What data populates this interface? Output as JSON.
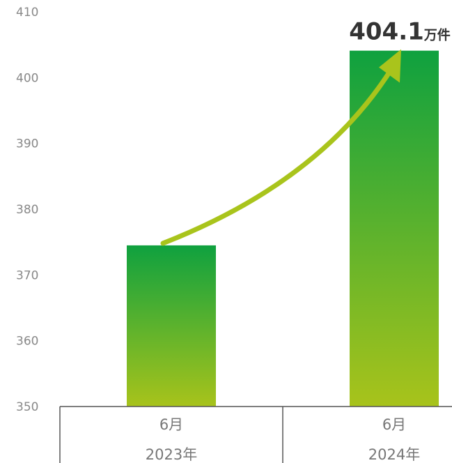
{
  "chart_data": {
    "type": "bar",
    "categories": [
      {
        "month": "6月",
        "year": "2023年"
      },
      {
        "month": "6月",
        "year": "2024年"
      }
    ],
    "values": [
      374.5,
      404.1
    ],
    "ylim": [
      350,
      410
    ],
    "yticks": [
      350,
      360,
      370,
      380,
      390,
      400,
      410
    ],
    "grid": false,
    "annotation": {
      "value": "404.1",
      "unit": "万件"
    },
    "colors": {
      "bar_top": "#0fa13f",
      "bar_bottom": "#a8c31b",
      "arrow": "#a9c41c",
      "axis": "#555555",
      "tick_text": "#888888"
    }
  }
}
